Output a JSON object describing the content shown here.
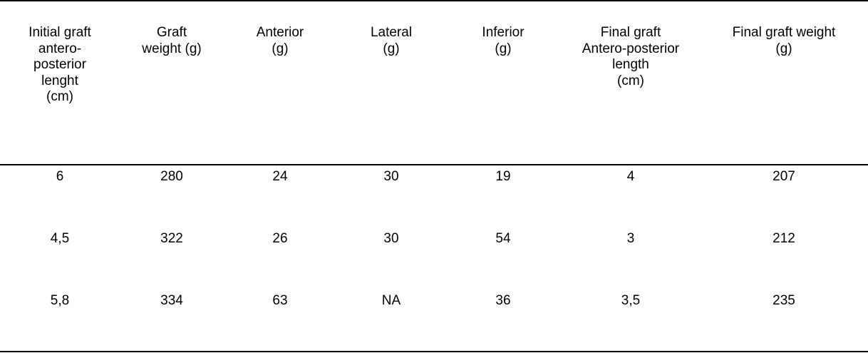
{
  "table": {
    "headers": [
      [
        "Initial graft",
        "antero-",
        "posterior",
        "lenght",
        "(cm)"
      ],
      [
        "Graft",
        "weight (g)"
      ],
      [
        "Anterior",
        "(g)"
      ],
      [
        "Lateral",
        "(g)"
      ],
      [
        "Inferior",
        "(g)"
      ],
      [
        "Final graft",
        "Antero-posterior",
        "length",
        "(cm)"
      ],
      [
        "Final graft weight",
        "(g)"
      ]
    ],
    "rows": [
      [
        "6",
        "280",
        "24",
        "30",
        "19",
        "4",
        "207"
      ],
      [
        "4,5",
        "322",
        "26",
        "30",
        "54",
        "3",
        "212"
      ],
      [
        "5,8",
        "334",
        "63",
        "NA",
        "36",
        "3,5",
        "235"
      ]
    ]
  }
}
